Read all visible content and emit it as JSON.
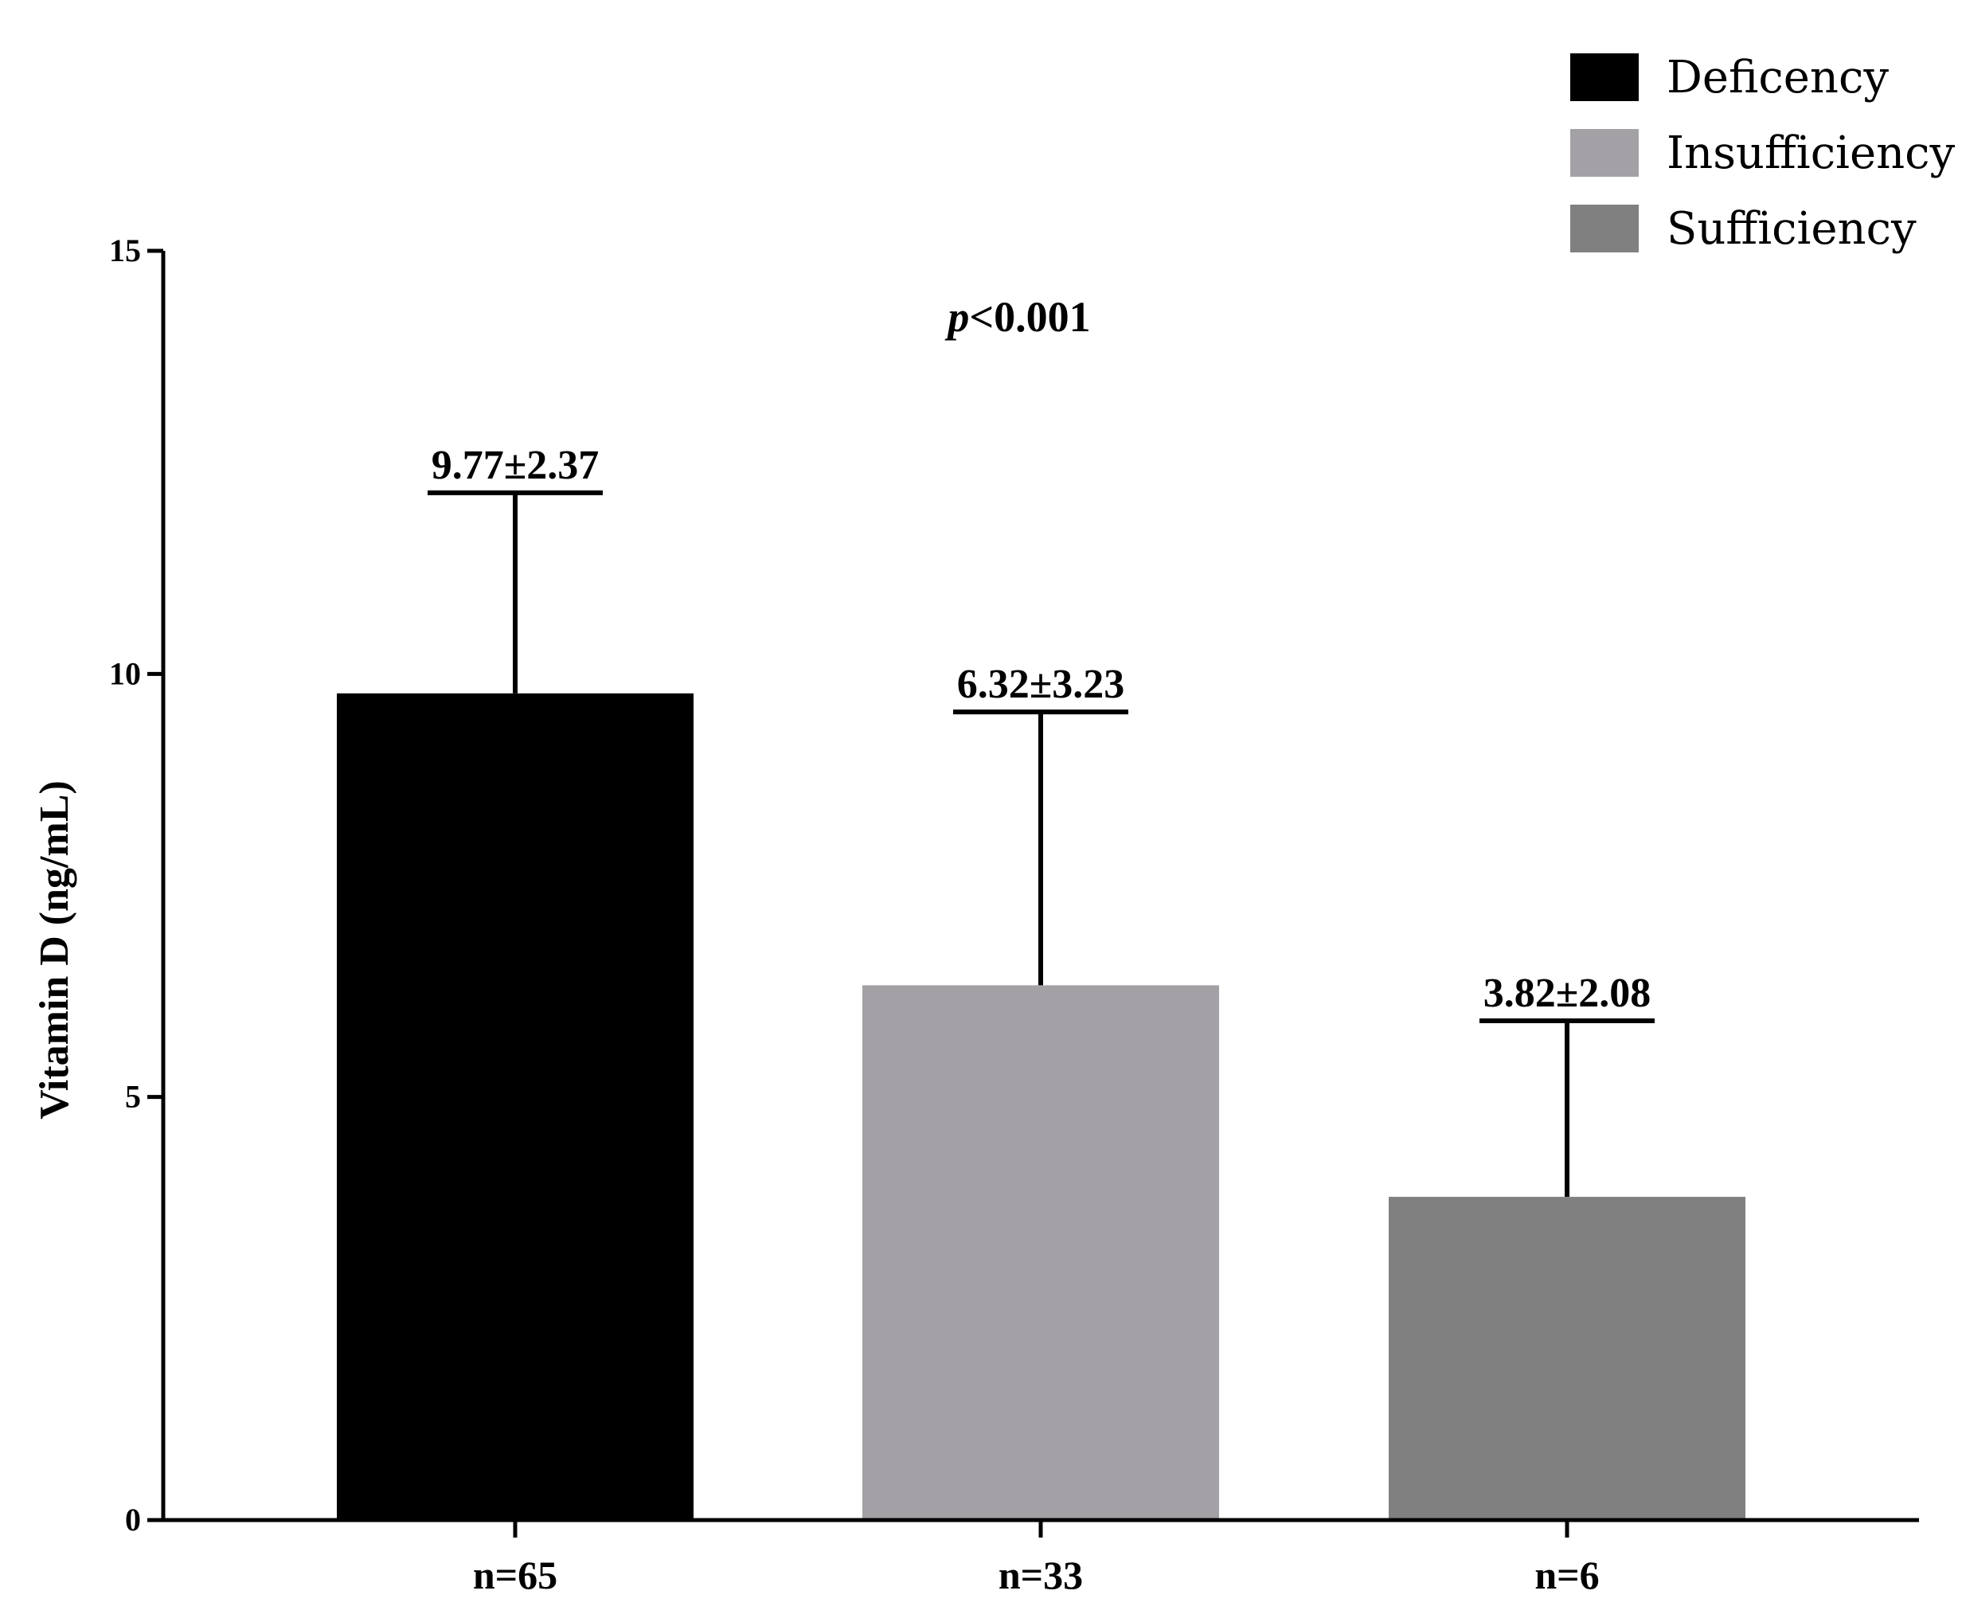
{
  "chart_data": {
    "type": "bar",
    "categories": [
      "n=65",
      "n=33",
      "n=6"
    ],
    "series": [
      {
        "values": [
          9.77,
          6.32,
          3.82
        ],
        "errors": [
          2.37,
          3.23,
          2.08
        ],
        "colors": [
          "#000000",
          "#a3a1a6",
          "#808080"
        ]
      }
    ],
    "data_labels": [
      "9.77±2.37",
      "6.32±3.23",
      "3.82±2.08"
    ],
    "ylabel": "Vitamin D (ng/mL)",
    "xlabel": "",
    "ylim": [
      0,
      15
    ],
    "yticks": [
      "0",
      "5",
      "10",
      "15"
    ],
    "annotation": {
      "italic": "p",
      "rest": "<0.001"
    },
    "legend": {
      "position": "top-right",
      "entries": [
        {
          "label": "Deficency",
          "color": "#000000"
        },
        {
          "label": "Insufficiency",
          "color": "#a3a1a6"
        },
        {
          "label": "Sufficiency",
          "color": "#808080"
        }
      ]
    },
    "grid": false
  }
}
